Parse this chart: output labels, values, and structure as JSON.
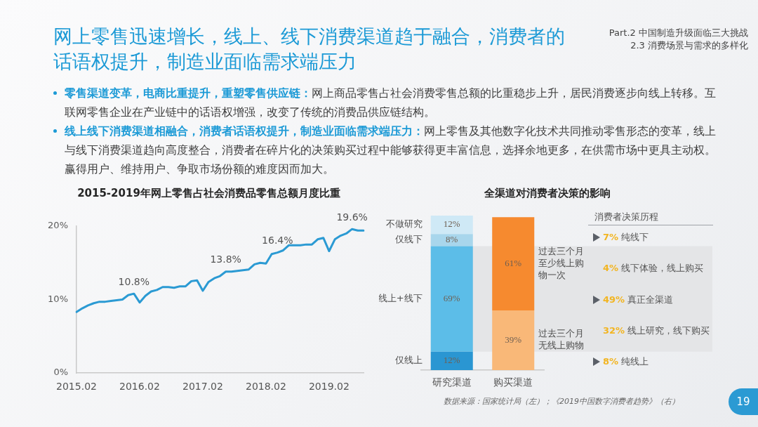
{
  "chart_data": [
    {
      "type": "other",
      "title": "网上零售迅速增长，线上、线下消费渠道趋于融合，消费者的话语权提升，制造业面临需求端压力",
      "subtitle": "Part.2 中国制造升级面临三大挑战\n2.3 消费场景与需求的多样化",
      "annotations": [
        "零售渠道变革，电商比重提升，重塑零售供应链：",
        "网上商品零售占社会消费零售总额的比重稳步上升，居民消费逐步向线上转移。互联网零售企业在产业链中的话语权增强，改变了传统的消费品供应链结构。",
        "线上线下消费渠道相融合，消费者话语权提升，制造业面临需求端压力：",
        "网上零售及其他数字化技术共同推动零售形态的变革，线上与线下消费渠道趋向高度整合，消费者在碎片化的决策购买过程中能够获得更丰富信息，选择余地更多，在供需市场中更具主动权。赢得用户、维持用户、争取市场份额的难度因而加大。",
        "19"
      ]
    },
    {
      "type": "line",
      "title": "2015-2019年网上零售占社会消费品零售总额月度比重",
      "categories": [
        "2015.02",
        null,
        null,
        null,
        null,
        null,
        null,
        null,
        null,
        null,
        null,
        "2016.02",
        null,
        null,
        null,
        null,
        null,
        null,
        null,
        null,
        null,
        null,
        "2017.02",
        null,
        null,
        null,
        null,
        null,
        null,
        null,
        null,
        null,
        null,
        "2018.02",
        null,
        null,
        null,
        null,
        null,
        null,
        null,
        null,
        null,
        null,
        "2019.02",
        null,
        null,
        null,
        null,
        null,
        null
      ],
      "values": [
        8.3,
        8.8,
        9.2,
        9.5,
        9.7,
        9.7,
        9.8,
        9.9,
        10,
        10.6,
        10.8,
        9.6,
        10.5,
        11.1,
        11.3,
        11.7,
        11.7,
        11.6,
        11.8,
        11.8,
        12.5,
        12.6,
        11.2,
        12.4,
        12.9,
        13.2,
        13.8,
        13.8,
        13.9,
        14.0,
        14.1,
        14.8,
        15.0,
        14.9,
        16.2,
        16.4,
        16.7,
        17.4,
        17.4,
        17.4,
        17.5,
        17.5,
        18.2,
        18.4,
        16.6,
        18.2,
        18.7,
        19.0,
        19.6,
        19.4,
        19.4
      ],
      "value_labels": [
        null,
        null,
        null,
        null,
        null,
        null,
        null,
        null,
        null,
        null,
        "10.8%",
        null,
        null,
        null,
        null,
        null,
        null,
        null,
        null,
        null,
        null,
        null,
        null,
        null,
        null,
        null,
        "13.8%",
        null,
        null,
        null,
        null,
        null,
        null,
        null,
        null,
        "16.4%",
        null,
        null,
        null,
        null,
        null,
        null,
        null,
        null,
        null,
        null,
        null,
        null,
        "19.6%",
        null,
        null
      ],
      "color": "#2b9ad3",
      "ylim": [
        0,
        20
      ],
      "yticks": [
        {
          "value": 0,
          "label": "0%"
        },
        {
          "value": 10,
          "label": "10%"
        },
        {
          "value": 20,
          "label": "20%"
        }
      ]
    },
    {
      "type": "bar",
      "title": "全渠道对消费者决策的影响",
      "categories": [
        "研究渠道",
        "购买渠道"
      ],
      "stacked": true,
      "tick_labels": "x",
      "series": [
        {
          "name": "仅线上",
          "color": "#2a96d2",
          "values": [
            12,
            null
          ],
          "value_labels": [
            "12%",
            null
          ]
        },
        {
          "name": "线上+线下",
          "color": "#5cbde8",
          "values": [
            69,
            null
          ],
          "value_labels": [
            "69%",
            null
          ]
        },
        {
          "name": "仅线下",
          "color": "#a8d6ec",
          "values": [
            8,
            null
          ],
          "value_labels": [
            "8%",
            null
          ]
        },
        {
          "name": "不做研究",
          "color": "#cfe9f6",
          "values": [
            12,
            null
          ],
          "value_labels": [
            "12%",
            null
          ]
        },
        {
          "name": "过去三个月无线上购物",
          "color": "#f9b878",
          "values": [
            null,
            39
          ],
          "value_labels": [
            null,
            "39%"
          ]
        },
        {
          "name": "过去三个月至少线上购物一次",
          "color": "#f68a2f",
          "values": [
            null,
            61
          ],
          "value_labels": [
            null,
            "61%"
          ]
        }
      ],
      "bands": [
        {
          "axis": "y",
          "from": 12,
          "to": 81,
          "color": "#e4e5e7"
        }
      ],
      "annotations": [
        "数据来源：国家统计局（左）；《2019中国数字消费者趋势》（右）"
      ]
    },
    {
      "type": "other",
      "title": "消费者决策历程",
      "annotations": [
        "7% 纯线下",
        "4% 线下体验，线上购买",
        "49% 真正全渠道",
        "32% 线上研究，线下购买",
        "8% 纯线上"
      ]
    }
  ]
}
